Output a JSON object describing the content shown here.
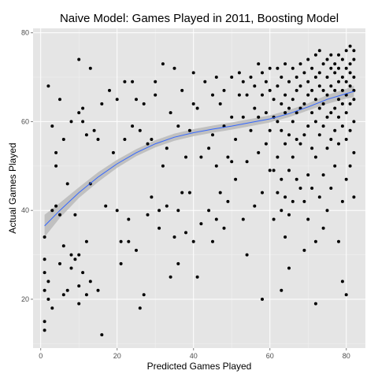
{
  "chart_data": {
    "type": "scatter",
    "title": "Naive Model: Games Played in 2011, Boosting Model",
    "xlabel": "Predicted Games Played",
    "ylabel": "Actual Games Played",
    "xlim": [
      -2,
      85
    ],
    "ylim": [
      9,
      81
    ],
    "x_ticks": [
      0,
      20,
      40,
      60,
      80
    ],
    "y_ticks": [
      20,
      40,
      60,
      80
    ],
    "grid": true,
    "legend": "none",
    "colors": {
      "panel": "#e5e5e5",
      "grid_major": "#ffffff",
      "grid_minor": "#f2f2f2",
      "points": "#000000",
      "smooth_line": "#3366ff",
      "confidence_band": "#b3b3b3"
    },
    "smooth": {
      "method": "loess",
      "x": [
        1,
        5,
        10,
        15,
        20,
        25,
        30,
        35,
        40,
        45,
        50,
        55,
        60,
        65,
        70,
        75,
        80,
        82
      ],
      "y": [
        36.5,
        40.0,
        44.0,
        47.5,
        50.5,
        53.0,
        55.0,
        56.5,
        57.5,
        58.3,
        59.0,
        59.8,
        60.6,
        61.8,
        63.3,
        65.0,
        66.3,
        66.8
      ],
      "lower": [
        34.0,
        38.3,
        42.8,
        46.4,
        49.6,
        52.2,
        54.2,
        55.7,
        56.7,
        57.5,
        58.2,
        59.0,
        59.8,
        61.0,
        62.5,
        64.0,
        65.2,
        65.5
      ],
      "upper": [
        39.0,
        41.7,
        45.2,
        48.6,
        51.4,
        53.8,
        55.8,
        57.3,
        58.3,
        59.1,
        59.8,
        60.6,
        61.4,
        62.6,
        64.1,
        66.0,
        67.4,
        68.1
      ]
    },
    "points": [
      [
        1,
        13
      ],
      [
        1,
        15
      ],
      [
        1,
        22
      ],
      [
        1,
        26
      ],
      [
        1,
        29
      ],
      [
        1,
        34
      ],
      [
        2,
        20
      ],
      [
        2,
        24
      ],
      [
        2,
        68
      ],
      [
        3,
        18
      ],
      [
        3,
        40
      ],
      [
        3,
        59
      ],
      [
        4,
        41
      ],
      [
        4,
        50
      ],
      [
        4,
        53
      ],
      [
        5,
        28
      ],
      [
        5,
        39
      ],
      [
        5,
        65
      ],
      [
        6,
        32
      ],
      [
        6,
        21
      ],
      [
        6,
        56
      ],
      [
        7,
        22
      ],
      [
        7,
        46
      ],
      [
        8,
        30
      ],
      [
        8,
        27
      ],
      [
        8,
        60
      ],
      [
        9,
        39
      ],
      [
        9,
        29
      ],
      [
        10,
        19
      ],
      [
        10,
        23
      ],
      [
        10,
        30
      ],
      [
        10,
        62
      ],
      [
        10,
        74
      ],
      [
        11,
        26
      ],
      [
        11,
        60
      ],
      [
        11,
        63
      ],
      [
        12,
        33
      ],
      [
        12,
        21
      ],
      [
        12,
        57
      ],
      [
        13,
        24
      ],
      [
        13,
        46
      ],
      [
        13,
        72
      ],
      [
        14,
        58
      ],
      [
        15,
        22
      ],
      [
        15,
        56
      ],
      [
        16,
        12
      ],
      [
        16,
        64
      ],
      [
        17,
        41
      ],
      [
        18,
        67
      ],
      [
        19,
        53
      ],
      [
        20,
        40
      ],
      [
        20,
        65
      ],
      [
        21,
        33
      ],
      [
        21,
        28
      ],
      [
        22,
        56
      ],
      [
        22,
        69
      ],
      [
        23,
        38
      ],
      [
        23,
        33
      ],
      [
        24,
        59
      ],
      [
        24,
        69
      ],
      [
        25,
        31
      ],
      [
        25,
        65
      ],
      [
        26,
        18
      ],
      [
        26,
        58
      ],
      [
        27,
        21
      ],
      [
        27,
        64
      ],
      [
        28,
        39
      ],
      [
        28,
        55
      ],
      [
        29,
        43
      ],
      [
        29,
        56
      ],
      [
        30,
        66
      ],
      [
        30,
        69
      ],
      [
        31,
        40
      ],
      [
        31,
        36
      ],
      [
        32,
        50
      ],
      [
        32,
        73
      ],
      [
        33,
        54
      ],
      [
        33,
        41
      ],
      [
        34,
        25
      ],
      [
        34,
        62
      ],
      [
        35,
        34
      ],
      [
        35,
        72
      ],
      [
        36,
        40
      ],
      [
        36,
        28
      ],
      [
        36,
        59
      ],
      [
        37,
        44
      ],
      [
        37,
        67
      ],
      [
        38,
        52
      ],
      [
        38,
        35
      ],
      [
        39,
        58
      ],
      [
        39,
        44
      ],
      [
        40,
        33
      ],
      [
        40,
        64
      ],
      [
        40,
        71
      ],
      [
        41,
        25
      ],
      [
        41,
        63
      ],
      [
        42,
        52
      ],
      [
        42,
        37
      ],
      [
        43,
        69
      ],
      [
        44,
        40
      ],
      [
        44,
        54
      ],
      [
        45,
        33
      ],
      [
        45,
        57
      ],
      [
        45,
        66
      ],
      [
        46,
        38
      ],
      [
        46,
        50
      ],
      [
        46,
        70
      ],
      [
        47,
        64
      ],
      [
        47,
        44
      ],
      [
        48,
        36
      ],
      [
        48,
        59
      ],
      [
        48,
        67
      ],
      [
        49,
        52
      ],
      [
        49,
        42
      ],
      [
        50,
        61
      ],
      [
        50,
        70
      ],
      [
        50,
        51
      ],
      [
        51,
        47
      ],
      [
        51,
        56
      ],
      [
        52,
        66
      ],
      [
        52,
        71
      ],
      [
        53,
        38
      ],
      [
        53,
        61
      ],
      [
        53,
        69
      ],
      [
        54,
        30
      ],
      [
        54,
        51
      ],
      [
        54,
        66
      ],
      [
        55,
        58
      ],
      [
        55,
        70
      ],
      [
        56,
        41
      ],
      [
        56,
        63
      ],
      [
        56,
        68
      ],
      [
        57,
        53
      ],
      [
        57,
        73
      ],
      [
        57,
        61
      ],
      [
        58,
        20
      ],
      [
        58,
        44
      ],
      [
        58,
        66
      ],
      [
        58,
        71
      ],
      [
        59,
        55
      ],
      [
        59,
        62
      ],
      [
        59,
        69
      ],
      [
        60,
        49
      ],
      [
        60,
        58
      ],
      [
        60,
        67
      ],
      [
        60,
        72
      ],
      [
        61,
        38
      ],
      [
        61,
        49
      ],
      [
        61,
        61
      ],
      [
        61,
        65
      ],
      [
        62,
        44
      ],
      [
        62,
        52
      ],
      [
        62,
        60
      ],
      [
        62,
        68
      ],
      [
        62,
        72
      ],
      [
        63,
        22
      ],
      [
        63,
        40
      ],
      [
        63,
        47
      ],
      [
        63,
        58
      ],
      [
        63,
        64
      ],
      [
        63,
        70
      ],
      [
        64,
        34
      ],
      [
        64,
        43
      ],
      [
        64,
        55
      ],
      [
        64,
        62
      ],
      [
        64,
        66
      ],
      [
        64,
        73
      ],
      [
        65,
        27
      ],
      [
        65,
        39
      ],
      [
        65,
        49
      ],
      [
        65,
        57
      ],
      [
        65,
        63
      ],
      [
        65,
        69
      ],
      [
        66,
        42
      ],
      [
        66,
        52
      ],
      [
        66,
        60
      ],
      [
        66,
        65
      ],
      [
        66,
        72
      ],
      [
        67,
        47
      ],
      [
        67,
        56
      ],
      [
        67,
        62
      ],
      [
        67,
        67
      ],
      [
        67,
        70
      ],
      [
        68,
        45
      ],
      [
        68,
        55
      ],
      [
        68,
        63
      ],
      [
        68,
        68
      ],
      [
        68,
        73
      ],
      [
        69,
        31
      ],
      [
        69,
        42
      ],
      [
        69,
        57
      ],
      [
        69,
        64
      ],
      [
        69,
        71
      ],
      [
        70,
        38
      ],
      [
        70,
        48
      ],
      [
        70,
        59
      ],
      [
        70,
        66
      ],
      [
        70,
        69
      ],
      [
        70,
        74
      ],
      [
        71,
        45
      ],
      [
        71,
        54
      ],
      [
        71,
        62
      ],
      [
        71,
        67
      ],
      [
        71,
        72
      ],
      [
        72,
        19
      ],
      [
        72,
        33
      ],
      [
        72,
        52
      ],
      [
        72,
        60
      ],
      [
        72,
        65
      ],
      [
        72,
        70
      ],
      [
        72,
        75
      ],
      [
        73,
        43
      ],
      [
        73,
        57
      ],
      [
        73,
        63
      ],
      [
        73,
        68
      ],
      [
        73,
        71
      ],
      [
        73,
        76
      ],
      [
        74,
        36
      ],
      [
        74,
        48
      ],
      [
        74,
        59
      ],
      [
        74,
        64
      ],
      [
        74,
        67
      ],
      [
        74,
        73
      ],
      [
        75,
        40
      ],
      [
        75,
        54
      ],
      [
        75,
        61
      ],
      [
        75,
        66
      ],
      [
        75,
        70
      ],
      [
        75,
        74
      ],
      [
        76,
        45
      ],
      [
        76,
        56
      ],
      [
        76,
        62
      ],
      [
        76,
        68
      ],
      [
        76,
        72
      ],
      [
        76,
        75
      ],
      [
        77,
        50
      ],
      [
        77,
        58
      ],
      [
        77,
        63
      ],
      [
        77,
        67
      ],
      [
        77,
        71
      ],
      [
        77,
        73
      ],
      [
        78,
        33
      ],
      [
        78,
        55
      ],
      [
        78,
        61
      ],
      [
        78,
        65
      ],
      [
        78,
        69
      ],
      [
        78,
        72
      ],
      [
        78,
        75
      ],
      [
        79,
        24
      ],
      [
        79,
        42
      ],
      [
        79,
        59
      ],
      [
        79,
        64
      ],
      [
        79,
        67
      ],
      [
        79,
        70
      ],
      [
        79,
        74
      ],
      [
        80,
        21
      ],
      [
        80,
        47
      ],
      [
        80,
        56
      ],
      [
        80,
        62
      ],
      [
        80,
        66
      ],
      [
        80,
        69
      ],
      [
        80,
        72
      ],
      [
        80,
        76
      ],
      [
        81,
        50
      ],
      [
        81,
        58
      ],
      [
        81,
        64
      ],
      [
        81,
        68
      ],
      [
        81,
        71
      ],
      [
        81,
        73
      ],
      [
        81,
        77
      ],
      [
        82,
        43
      ],
      [
        82,
        53
      ],
      [
        82,
        60
      ],
      [
        82,
        65
      ],
      [
        82,
        67
      ],
      [
        82,
        70
      ],
      [
        82,
        74
      ],
      [
        82,
        76
      ]
    ]
  }
}
